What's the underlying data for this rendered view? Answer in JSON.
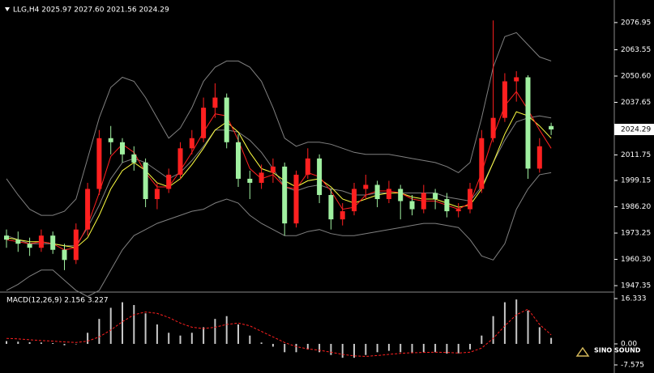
{
  "chart_data": [
    {
      "type": "candlestick",
      "title": "LLG,H4 2025.97 2027.60 2021.56 2024.29",
      "up_color": "#ff2020",
      "down_color": "#a0f0a0",
      "ylim": [
        1945.37,
        2086.07
      ],
      "yticks": [
        2076.95,
        2063.55,
        {
          "value": 2050.6,
          "label": "2050.60"
        },
        2037.65,
        2011.75,
        1999.15,
        {
          "value": 1986.2,
          "label": "1986.20"
        },
        1973.25,
        {
          "value": 1960.3,
          "label": "1960.30"
        },
        1947.35
      ],
      "current_price": 2024.29,
      "ohlc": [
        [
          1972,
          1975,
          1966,
          1970
        ],
        [
          1970,
          1974,
          1964,
          1968
        ],
        [
          1968,
          1971,
          1962,
          1966
        ],
        [
          1966,
          1975,
          1964,
          1972
        ],
        [
          1972,
          1974,
          1963,
          1965
        ],
        [
          1965,
          1968,
          1955,
          1960
        ],
        [
          1960,
          1978,
          1958,
          1975
        ],
        [
          1975,
          1998,
          1972,
          1995
        ],
        [
          1995,
          2024,
          1992,
          2020
        ],
        [
          2020,
          2026,
          2012,
          2018
        ],
        [
          2018,
          2020,
          2008,
          2012
        ],
        [
          2012,
          2016,
          2004,
          2008
        ],
        [
          2008,
          2010,
          1986,
          1990
        ],
        [
          1990,
          1998,
          1985,
          1995
        ],
        [
          1995,
          2005,
          1993,
          2002
        ],
        [
          2002,
          2018,
          2000,
          2015
        ],
        [
          2015,
          2024,
          2012,
          2020
        ],
        [
          2020,
          2040,
          2018,
          2035
        ],
        [
          2035,
          2047,
          2030,
          2040
        ],
        [
          2040,
          2042,
          2015,
          2018
        ],
        [
          2018,
          2022,
          1996,
          2000
        ],
        [
          2000,
          2004,
          1990,
          1998
        ],
        [
          1998,
          2007,
          1995,
          2003
        ],
        [
          2003,
          2010,
          1998,
          2006
        ],
        [
          2006,
          2008,
          1972,
          1978
        ],
        [
          1978,
          2004,
          1976,
          2002
        ],
        [
          2002,
          2015,
          2000,
          2010
        ],
        [
          2010,
          2012,
          1988,
          1992
        ],
        [
          1992,
          1995,
          1975,
          1980
        ],
        [
          1980,
          1988,
          1977,
          1984
        ],
        [
          1984,
          1998,
          1982,
          1995
        ],
        [
          1995,
          2002,
          1990,
          1997
        ],
        [
          1997,
          1999,
          1986,
          1990
        ],
        [
          1990,
          1999,
          1988,
          1995
        ],
        [
          1995,
          1997,
          1980,
          1989
        ],
        [
          1989,
          1992,
          1982,
          1985
        ],
        [
          1985,
          1997,
          1983,
          1993
        ],
        [
          1993,
          1995,
          1985,
          1990
        ],
        [
          1990,
          1993,
          1981,
          1984
        ],
        [
          1984,
          1988,
          1981,
          1985
        ],
        [
          1985,
          1998,
          1983,
          1995
        ],
        [
          1995,
          2024,
          1993,
          2020
        ],
        [
          2020,
          2078,
          2018,
          2030
        ],
        [
          2030,
          2052,
          2028,
          2048
        ],
        [
          2048,
          2053,
          2038,
          2050
        ],
        [
          2050,
          2051,
          2000,
          2005
        ],
        [
          2005,
          2020,
          2003,
          2016
        ],
        [
          2025.97,
          2027.6,
          2021.56,
          2024.29
        ]
      ],
      "lines": [
        {
          "color": "#808080",
          "values": [
            2000,
            1992,
            1985,
            1982,
            1982,
            1984,
            1990,
            2010,
            2030,
            2045,
            2050,
            2048,
            2040,
            2030,
            2020,
            2025,
            2035,
            2048,
            2055,
            2058,
            2058,
            2055,
            2048,
            2035,
            2020,
            2016,
            2018,
            2018,
            2017,
            2015,
            2013,
            2012,
            2012,
            2012,
            2011,
            2010,
            2009,
            2008,
            2006,
            2003,
            2008,
            2030,
            2055,
            2070,
            2072,
            2066,
            2060,
            2058
          ]
        },
        {
          "color": "#808080",
          "values": [
            1972,
            1970,
            1968,
            1968,
            1968,
            1967,
            1967,
            1976,
            1987,
            2000,
            2008,
            2010,
            2008,
            2004,
            2000,
            2003,
            2009,
            2016,
            2024,
            2024,
            2023,
            2019,
            2013,
            2005,
            1996,
            1994,
            1996,
            1997,
            1995,
            1994,
            1992,
            1992,
            1993,
            1993,
            1993,
            1993,
            1993,
            1993,
            1991,
            1990,
            1989,
            1996,
            2008,
            2019,
            2028,
            2030,
            2031,
            2030
          ]
        },
        {
          "color": "#808080",
          "values": [
            1945,
            1948,
            1952,
            1955,
            1955,
            1950,
            1945,
            1942,
            1945,
            1955,
            1965,
            1972,
            1975,
            1978,
            1980,
            1982,
            1984,
            1985,
            1988,
            1990,
            1988,
            1982,
            1978,
            1975,
            1972,
            1972,
            1974,
            1975,
            1973,
            1972,
            1972,
            1973,
            1974,
            1975,
            1976,
            1977,
            1978,
            1978,
            1977,
            1976,
            1970,
            1962,
            1960,
            1968,
            1985,
            1995,
            2002,
            2003
          ]
        },
        {
          "color": "#ffff40",
          "values": [
            1971,
            1970,
            1969,
            1969,
            1968,
            1967,
            1966,
            1971,
            1982,
            1995,
            2004,
            2008,
            2004,
            1998,
            1996,
            2000,
            2007,
            2015,
            2024,
            2028,
            2023,
            2013,
            2005,
            2003,
            1999,
            1996,
            1999,
            2000,
            1996,
            1990,
            1988,
            1990,
            1992,
            1993,
            1993,
            1991,
            1990,
            1990,
            1988,
            1986,
            1987,
            1995,
            2008,
            2022,
            2033,
            2031,
            2026,
            2020
          ]
        },
        {
          "color": "#ff2020",
          "values": [
            1970,
            1969,
            1968,
            1969,
            1968,
            1965,
            1966,
            1977,
            1993,
            2011,
            2017,
            2013,
            2003,
            1996,
            1996,
            2004,
            2013,
            2023,
            2032,
            2031,
            2019,
            2005,
            2000,
            2002,
            1996,
            1995,
            2003,
            2001,
            1994,
            1985,
            1986,
            1992,
            1994,
            1994,
            1993,
            1990,
            1989,
            1989,
            1987,
            1985,
            1988,
            2003,
            2021,
            2036,
            2043,
            2034,
            2024,
            2015
          ]
        }
      ]
    },
    {
      "type": "macd",
      "title": "MACD(12,26,9) 2.156 3.227",
      "ylim": [
        -9.616,
        18.37
      ],
      "yticks": [
        16.333,
        {
          "value": 0,
          "label": "0.00"
        },
        -7.575
      ],
      "histogram": {
        "color": "#c8c8c8",
        "values": [
          1,
          0.8,
          0.6,
          0.5,
          0.3,
          -0.5,
          0,
          4,
          9,
          13,
          15,
          14,
          11,
          7,
          4,
          3,
          4,
          6,
          9,
          10,
          7,
          3,
          0.5,
          -1,
          -3,
          -3,
          -2,
          -3,
          -4,
          -5,
          -5,
          -4,
          -3,
          -2.5,
          -3,
          -3.2,
          -3,
          -3,
          -3.5,
          -3.4,
          -2,
          3,
          10,
          15,
          16,
          12,
          6,
          2.156
        ]
      },
      "signal": {
        "color": "#ff2020",
        "values": [
          2,
          1.8,
          1.5,
          1.2,
          1,
          0.7,
          0.5,
          1,
          2.5,
          5,
          8,
          10.5,
          11.5,
          11,
          9.5,
          7.5,
          6,
          5.5,
          6,
          7,
          7.5,
          6.5,
          4.5,
          2.5,
          0.5,
          -1,
          -1.8,
          -2.3,
          -3,
          -3.8,
          -4.3,
          -4.5,
          -4.2,
          -3.8,
          -3.4,
          -3.2,
          -3.1,
          -3,
          -3.1,
          -3.3,
          -3,
          -1.5,
          2,
          6.5,
          10.5,
          12.5,
          7,
          3.227
        ]
      }
    }
  ],
  "watermark": "SINO SOUND"
}
